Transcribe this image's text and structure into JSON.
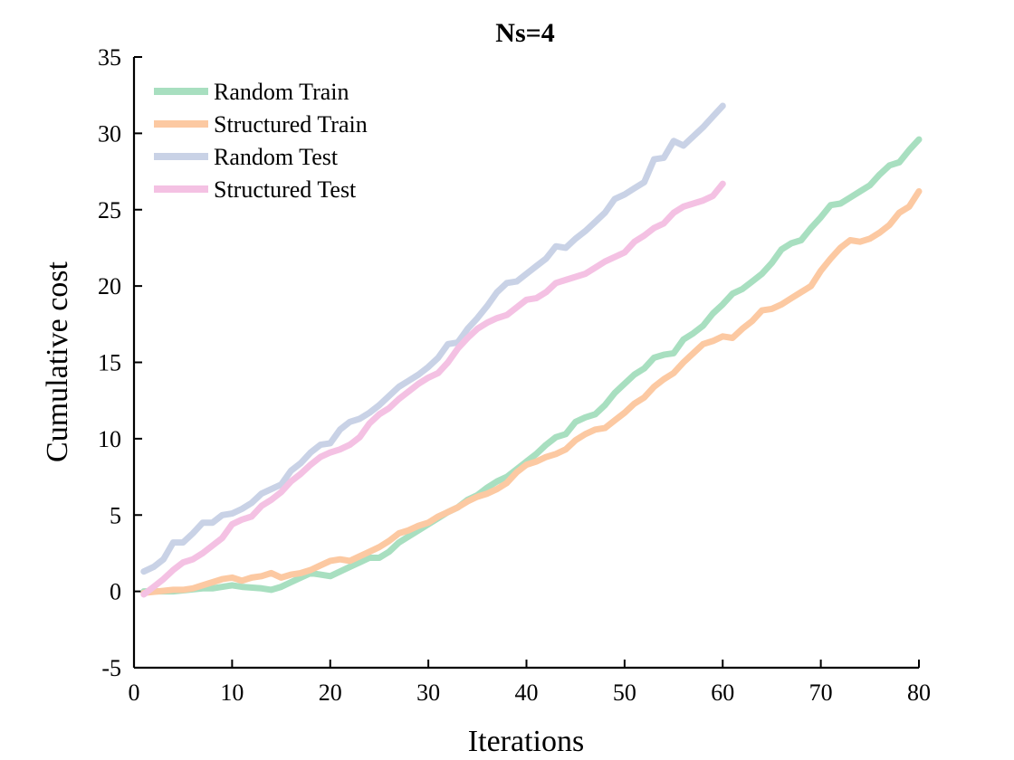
{
  "chart_data": {
    "type": "line",
    "title": "Ns=4",
    "xlabel": "Iterations",
    "ylabel": "Cumulative cost",
    "xlim": [
      0,
      80
    ],
    "ylim": [
      -5,
      35
    ],
    "xticks": [
      0,
      10,
      20,
      30,
      40,
      50,
      60,
      70,
      80
    ],
    "yticks": [
      -5,
      0,
      5,
      10,
      15,
      20,
      25,
      30,
      35
    ],
    "grid": false,
    "legend_position": "top-left",
    "series": [
      {
        "name": "Random Train",
        "color": "#a8dfc0",
        "points": [
          [
            1,
            0.0
          ],
          [
            4,
            0.0
          ],
          [
            7,
            0.2
          ],
          [
            8,
            0.2
          ],
          [
            10,
            0.4
          ],
          [
            11,
            0.3
          ],
          [
            13,
            0.2
          ],
          [
            14,
            0.1
          ],
          [
            15,
            0.3
          ],
          [
            16,
            0.6
          ],
          [
            17,
            0.9
          ],
          [
            18,
            1.2
          ],
          [
            19,
            1.1
          ],
          [
            20,
            1.0
          ],
          [
            21,
            1.3
          ],
          [
            22,
            1.6
          ],
          [
            23,
            1.9
          ],
          [
            24,
            2.2
          ],
          [
            25,
            2.2
          ],
          [
            26,
            2.6
          ],
          [
            27,
            3.2
          ],
          [
            28,
            3.6
          ],
          [
            29,
            4.0
          ],
          [
            30,
            4.4
          ],
          [
            31,
            4.8
          ],
          [
            32,
            5.2
          ],
          [
            33,
            5.5
          ],
          [
            34,
            6.0
          ],
          [
            35,
            6.3
          ],
          [
            36,
            6.8
          ],
          [
            37,
            7.2
          ],
          [
            38,
            7.5
          ],
          [
            39,
            8.0
          ],
          [
            40,
            8.5
          ],
          [
            41,
            9.0
          ],
          [
            42,
            9.6
          ],
          [
            43,
            10.1
          ],
          [
            44,
            10.3
          ],
          [
            45,
            11.1
          ],
          [
            46,
            11.4
          ],
          [
            47,
            11.6
          ],
          [
            48,
            12.2
          ],
          [
            49,
            13.0
          ],
          [
            50,
            13.6
          ],
          [
            51,
            14.2
          ],
          [
            52,
            14.6
          ],
          [
            53,
            15.3
          ],
          [
            54,
            15.5
          ],
          [
            55,
            15.6
          ],
          [
            56,
            16.5
          ],
          [
            57,
            16.9
          ],
          [
            58,
            17.4
          ],
          [
            59,
            18.2
          ],
          [
            60,
            18.8
          ],
          [
            61,
            19.5
          ],
          [
            62,
            19.8
          ],
          [
            63,
            20.3
          ],
          [
            64,
            20.8
          ],
          [
            65,
            21.5
          ],
          [
            66,
            22.4
          ],
          [
            67,
            22.8
          ],
          [
            68,
            23.0
          ],
          [
            69,
            23.8
          ],
          [
            70,
            24.5
          ],
          [
            71,
            25.3
          ],
          [
            72,
            25.4
          ],
          [
            73,
            25.8
          ],
          [
            74,
            26.2
          ],
          [
            75,
            26.6
          ],
          [
            76,
            27.3
          ],
          [
            77,
            27.9
          ],
          [
            78,
            28.1
          ],
          [
            79,
            28.9
          ],
          [
            80,
            29.6
          ]
        ]
      },
      {
        "name": "Structured Train",
        "color": "#fcc9a2",
        "points": [
          [
            1,
            -0.1
          ],
          [
            4,
            0.1
          ],
          [
            5,
            0.1
          ],
          [
            6,
            0.2
          ],
          [
            7,
            0.4
          ],
          [
            8,
            0.6
          ],
          [
            9,
            0.8
          ],
          [
            10,
            0.9
          ],
          [
            11,
            0.7
          ],
          [
            12,
            0.9
          ],
          [
            13,
            1.0
          ],
          [
            14,
            1.2
          ],
          [
            15,
            0.9
          ],
          [
            16,
            1.1
          ],
          [
            17,
            1.2
          ],
          [
            18,
            1.4
          ],
          [
            19,
            1.7
          ],
          [
            20,
            2.0
          ],
          [
            21,
            2.1
          ],
          [
            22,
            2.0
          ],
          [
            23,
            2.3
          ],
          [
            24,
            2.6
          ],
          [
            25,
            2.9
          ],
          [
            26,
            3.3
          ],
          [
            27,
            3.8
          ],
          [
            28,
            4.0
          ],
          [
            29,
            4.3
          ],
          [
            30,
            4.5
          ],
          [
            31,
            4.9
          ],
          [
            32,
            5.2
          ],
          [
            33,
            5.5
          ],
          [
            34,
            5.9
          ],
          [
            35,
            6.2
          ],
          [
            36,
            6.4
          ],
          [
            37,
            6.7
          ],
          [
            38,
            7.1
          ],
          [
            39,
            7.8
          ],
          [
            40,
            8.3
          ],
          [
            41,
            8.5
          ],
          [
            42,
            8.8
          ],
          [
            43,
            9.0
          ],
          [
            44,
            9.3
          ],
          [
            45,
            9.9
          ],
          [
            46,
            10.3
          ],
          [
            47,
            10.6
          ],
          [
            48,
            10.7
          ],
          [
            49,
            11.2
          ],
          [
            50,
            11.7
          ],
          [
            51,
            12.3
          ],
          [
            52,
            12.7
          ],
          [
            53,
            13.4
          ],
          [
            54,
            13.9
          ],
          [
            55,
            14.3
          ],
          [
            56,
            15.0
          ],
          [
            57,
            15.6
          ],
          [
            58,
            16.2
          ],
          [
            59,
            16.4
          ],
          [
            60,
            16.7
          ],
          [
            61,
            16.6
          ],
          [
            62,
            17.2
          ],
          [
            63,
            17.7
          ],
          [
            64,
            18.4
          ],
          [
            65,
            18.5
          ],
          [
            66,
            18.8
          ],
          [
            67,
            19.2
          ],
          [
            68,
            19.6
          ],
          [
            69,
            20.0
          ],
          [
            70,
            21.0
          ],
          [
            71,
            21.8
          ],
          [
            72,
            22.5
          ],
          [
            73,
            23.0
          ],
          [
            74,
            22.9
          ],
          [
            75,
            23.1
          ],
          [
            76,
            23.5
          ],
          [
            77,
            24.0
          ],
          [
            78,
            24.8
          ],
          [
            79,
            25.2
          ],
          [
            80,
            26.2
          ]
        ]
      },
      {
        "name": "Random Test",
        "color": "#c9d2e6",
        "points": [
          [
            1,
            1.3
          ],
          [
            2,
            1.6
          ],
          [
            3,
            2.1
          ],
          [
            4,
            3.2
          ],
          [
            5,
            3.2
          ],
          [
            6,
            3.8
          ],
          [
            7,
            4.5
          ],
          [
            8,
            4.5
          ],
          [
            9,
            5.0
          ],
          [
            10,
            5.1
          ],
          [
            11,
            5.4
          ],
          [
            12,
            5.8
          ],
          [
            13,
            6.4
          ],
          [
            14,
            6.7
          ],
          [
            15,
            7.0
          ],
          [
            16,
            7.9
          ],
          [
            17,
            8.4
          ],
          [
            18,
            9.1
          ],
          [
            19,
            9.6
          ],
          [
            20,
            9.7
          ],
          [
            21,
            10.6
          ],
          [
            22,
            11.1
          ],
          [
            23,
            11.3
          ],
          [
            24,
            11.7
          ],
          [
            25,
            12.2
          ],
          [
            26,
            12.8
          ],
          [
            27,
            13.4
          ],
          [
            28,
            13.8
          ],
          [
            29,
            14.2
          ],
          [
            30,
            14.7
          ],
          [
            31,
            15.3
          ],
          [
            32,
            16.2
          ],
          [
            33,
            16.3
          ],
          [
            34,
            17.2
          ],
          [
            35,
            17.9
          ],
          [
            36,
            18.7
          ],
          [
            37,
            19.6
          ],
          [
            38,
            20.2
          ],
          [
            39,
            20.3
          ],
          [
            40,
            20.8
          ],
          [
            41,
            21.3
          ],
          [
            42,
            21.8
          ],
          [
            43,
            22.6
          ],
          [
            44,
            22.5
          ],
          [
            45,
            23.1
          ],
          [
            46,
            23.6
          ],
          [
            47,
            24.2
          ],
          [
            48,
            24.8
          ],
          [
            49,
            25.7
          ],
          [
            50,
            26.0
          ],
          [
            51,
            26.4
          ],
          [
            52,
            26.8
          ],
          [
            53,
            28.3
          ],
          [
            54,
            28.4
          ],
          [
            55,
            29.5
          ],
          [
            56,
            29.2
          ],
          [
            57,
            29.8
          ],
          [
            58,
            30.4
          ],
          [
            59,
            31.1
          ],
          [
            60,
            31.8
          ]
        ]
      },
      {
        "name": "Structured Test",
        "color": "#f4c1e3",
        "points": [
          [
            1,
            -0.2
          ],
          [
            2,
            0.3
          ],
          [
            3,
            0.8
          ],
          [
            4,
            1.4
          ],
          [
            5,
            1.9
          ],
          [
            6,
            2.1
          ],
          [
            7,
            2.5
          ],
          [
            8,
            3.0
          ],
          [
            9,
            3.5
          ],
          [
            10,
            4.4
          ],
          [
            11,
            4.7
          ],
          [
            12,
            4.9
          ],
          [
            13,
            5.6
          ],
          [
            14,
            6.0
          ],
          [
            15,
            6.5
          ],
          [
            16,
            7.2
          ],
          [
            17,
            7.7
          ],
          [
            18,
            8.3
          ],
          [
            19,
            8.8
          ],
          [
            20,
            9.1
          ],
          [
            21,
            9.3
          ],
          [
            22,
            9.6
          ],
          [
            23,
            10.1
          ],
          [
            24,
            11.0
          ],
          [
            25,
            11.6
          ],
          [
            26,
            12.0
          ],
          [
            27,
            12.6
          ],
          [
            28,
            13.1
          ],
          [
            29,
            13.6
          ],
          [
            30,
            14.0
          ],
          [
            31,
            14.3
          ],
          [
            32,
            15.0
          ],
          [
            33,
            15.9
          ],
          [
            34,
            16.6
          ],
          [
            35,
            17.2
          ],
          [
            36,
            17.6
          ],
          [
            37,
            17.9
          ],
          [
            38,
            18.1
          ],
          [
            39,
            18.6
          ],
          [
            40,
            19.1
          ],
          [
            41,
            19.2
          ],
          [
            42,
            19.6
          ],
          [
            43,
            20.2
          ],
          [
            44,
            20.4
          ],
          [
            45,
            20.6
          ],
          [
            46,
            20.8
          ],
          [
            47,
            21.2
          ],
          [
            48,
            21.6
          ],
          [
            49,
            21.9
          ],
          [
            50,
            22.2
          ],
          [
            51,
            22.9
          ],
          [
            52,
            23.3
          ],
          [
            53,
            23.8
          ],
          [
            54,
            24.1
          ],
          [
            55,
            24.8
          ],
          [
            56,
            25.2
          ],
          [
            57,
            25.4
          ],
          [
            58,
            25.6
          ],
          [
            59,
            25.9
          ],
          [
            60,
            26.7
          ]
        ]
      }
    ]
  }
}
